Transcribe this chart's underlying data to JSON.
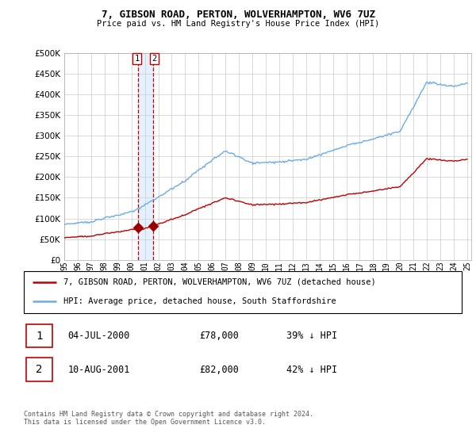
{
  "title": "7, GIBSON ROAD, PERTON, WOLVERHAMPTON, WV6 7UZ",
  "subtitle": "Price paid vs. HM Land Registry's House Price Index (HPI)",
  "legend_line1": "7, GIBSON ROAD, PERTON, WOLVERHAMPTON, WV6 7UZ (detached house)",
  "legend_line2": "HPI: Average price, detached house, South Staffordshire",
  "transaction1_date": "04-JUL-2000",
  "transaction1_price": "£78,000",
  "transaction1_hpi": "39% ↓ HPI",
  "transaction2_date": "10-AUG-2001",
  "transaction2_price": "£82,000",
  "transaction2_hpi": "42% ↓ HPI",
  "footer": "Contains HM Land Registry data © Crown copyright and database right 2024.\nThis data is licensed under the Open Government Licence v3.0.",
  "hpi_color": "#6aace6",
  "price_color": "#c00000",
  "marker_color": "#9b0000",
  "vline_color": "#c00000",
  "shade_color": "#ddeeff",
  "ylim_min": 0,
  "ylim_max": 500000,
  "yticks": [
    0,
    50000,
    100000,
    150000,
    200000,
    250000,
    300000,
    350000,
    400000,
    450000,
    500000
  ],
  "t1_year": 2000.5,
  "t2_year": 2001.6,
  "t1_price": 78000,
  "t2_price": 82000
}
